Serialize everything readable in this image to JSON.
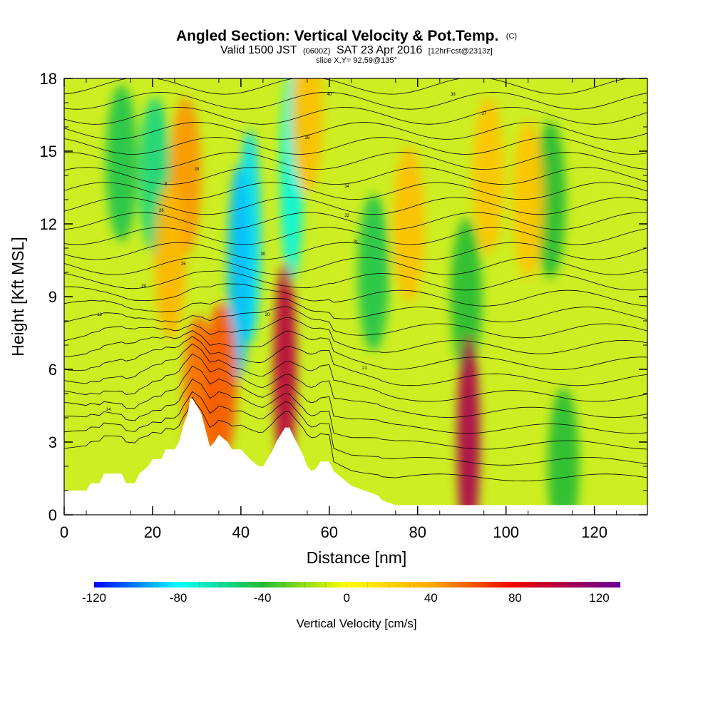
{
  "header": {
    "title": "Angled Section: Vertical Velocity & Pot.Temp.",
    "title_unit": "(C)",
    "valid_prefix": "Valid 1500 JST",
    "valid_utc": "(0600Z)",
    "valid_date": "SAT 23 Apr 2016",
    "forecast": "[12hrFcst@2313z]",
    "slice": "slice X,Y= 92,59@135°"
  },
  "colors": {
    "min": "#0000ff",
    "zero": "#ffff00",
    "max": "#660099",
    "terrain": "#ffffff",
    "contour": "#000000"
  },
  "chart_data": {
    "type": "heatmap",
    "title": "Angled Section: Vertical Velocity & Pot.Temp.",
    "xlabel": "Distance [nm]",
    "ylabel": "Height [Kft MSL]",
    "xlim": [
      0,
      132
    ],
    "ylim": [
      0,
      18
    ],
    "x_ticks": [
      0,
      20,
      40,
      60,
      80,
      100,
      120
    ],
    "y_ticks": [
      0,
      3,
      6,
      9,
      12,
      15,
      18
    ],
    "colorbar": {
      "label": "Vertical Velocity [cm/s]",
      "range": [
        -120,
        130
      ],
      "tick_values": [
        -120,
        -80,
        -40,
        0,
        40,
        80,
        120
      ],
      "tick_labels": [
        "-120",
        "-80",
        "-40",
        "0",
        "40",
        "80",
        "120"
      ]
    },
    "terrain_profile": {
      "x": [
        0,
        5,
        6,
        8,
        9,
        13,
        14,
        16,
        17,
        19,
        20,
        22,
        23,
        25,
        26,
        27,
        28,
        28.5,
        29,
        31,
        32,
        33,
        34,
        35,
        37,
        38,
        40,
        42,
        44,
        45,
        46,
        47,
        48,
        49,
        50,
        51,
        52,
        54,
        55,
        56,
        57,
        58,
        60,
        61,
        63,
        65,
        68,
        71,
        72,
        75,
        80,
        132
      ],
      "height": [
        1.0,
        1.0,
        1.3,
        1.3,
        1.7,
        1.7,
        1.3,
        1.3,
        1.7,
        2.0,
        2.3,
        2.3,
        2.7,
        2.7,
        3.0,
        3.7,
        4.2,
        4.8,
        4.8,
        4.2,
        3.5,
        2.8,
        3.0,
        3.3,
        3.0,
        2.7,
        2.7,
        2.3,
        2.0,
        2.0,
        2.3,
        2.6,
        3.0,
        3.3,
        3.6,
        3.6,
        3.2,
        2.5,
        2.0,
        1.8,
        1.9,
        2.2,
        2.2,
        1.8,
        1.5,
        1.2,
        1.0,
        0.8,
        0.6,
        0.4,
        0.4,
        0.4
      ]
    },
    "updraft_features": [
      {
        "x": 27.5,
        "height": 14.0,
        "w_cm_s": 45
      },
      {
        "x": 30.5,
        "height": 5.0,
        "w_cm_s": 55
      },
      {
        "x": 35.5,
        "height": 5.5,
        "w_cm_s": 60
      },
      {
        "x": 50,
        "height": 6.0,
        "w_cm_s": 100
      },
      {
        "x": 91.5,
        "height": 3.0,
        "w_cm_s": 105
      },
      {
        "x": 24,
        "height": 10.5,
        "w_cm_s": 35
      },
      {
        "x": 55,
        "height": 16.5,
        "w_cm_s": 30
      },
      {
        "x": 78,
        "height": 12.0,
        "w_cm_s": 30
      },
      {
        "x": 96,
        "height": 14.0,
        "w_cm_s": 28
      },
      {
        "x": 105,
        "height": 13.0,
        "w_cm_s": 28
      }
    ],
    "downdraft_features": [
      {
        "x": 42,
        "height": 11.5,
        "w_cm_s": -85
      },
      {
        "x": 39.5,
        "height": 10.0,
        "w_cm_s": -90
      },
      {
        "x": 51.5,
        "height": 14.0,
        "w_cm_s": -75
      },
      {
        "x": 20.5,
        "height": 14.0,
        "w_cm_s": -55
      },
      {
        "x": 13,
        "height": 14.5,
        "w_cm_s": -45
      },
      {
        "x": 70,
        "height": 10.0,
        "w_cm_s": -45
      },
      {
        "x": 91,
        "height": 9.0,
        "w_cm_s": -40
      },
      {
        "x": 110,
        "height": 13.0,
        "w_cm_s": -40
      },
      {
        "x": 113,
        "height": 2.0,
        "w_cm_s": -40
      }
    ],
    "isentrope_labels": [
      "40",
      "38",
      "37",
      "35",
      "34",
      "32",
      "31",
      "30",
      "28",
      "26",
      "25",
      "24",
      "21",
      "20",
      "18",
      "14",
      "8"
    ]
  }
}
